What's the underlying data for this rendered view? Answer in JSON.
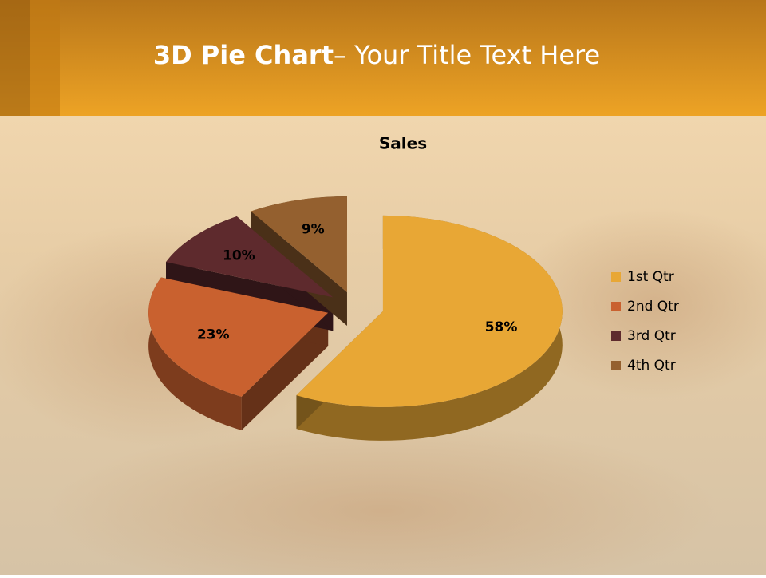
{
  "slide_title": {
    "bold": "3D Pie Chart",
    "rest": "– Your Title Text Here"
  },
  "chart_data": {
    "type": "pie",
    "title": "Sales",
    "categories": [
      "1st Qtr",
      "2nd Qtr",
      "3rd Qtr",
      "4th Qtr"
    ],
    "values": [
      58,
      23,
      10,
      9
    ],
    "value_labels": [
      "58%",
      "23%",
      "10%",
      "9%"
    ],
    "colors": [
      "#E8A735",
      "#C9612F",
      "#5E2A2D",
      "#94602F"
    ],
    "legend": "right"
  }
}
